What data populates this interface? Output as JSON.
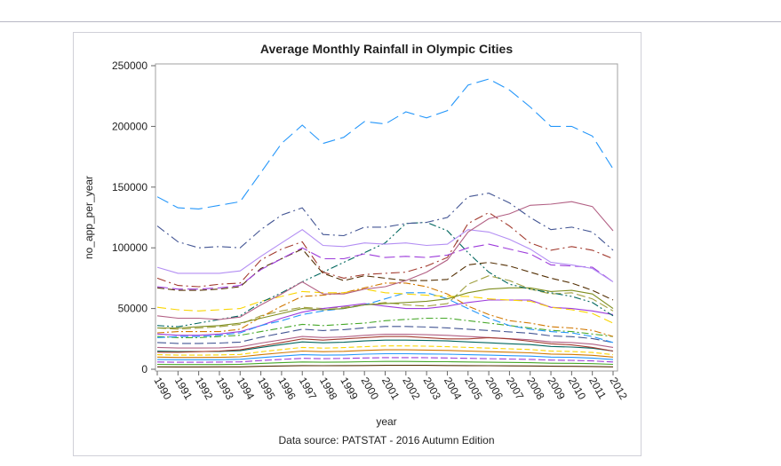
{
  "chart_data": {
    "type": "line",
    "title": "Average Monthly Rainfall in Olympic Cities",
    "xlabel": "year",
    "ylabel": "no_app_per_year",
    "footnote": "Data source: PATSTAT - 2016 Autumn Edition",
    "xlim": [
      1990,
      2012
    ],
    "ylim": [
      0,
      250000
    ],
    "yticks": [
      0,
      50000,
      100000,
      150000,
      200000,
      250000
    ],
    "x": [
      1990,
      1991,
      1992,
      1993,
      1994,
      1995,
      1996,
      1997,
      1998,
      1999,
      2000,
      2001,
      2002,
      2003,
      2004,
      2005,
      2006,
      2007,
      2008,
      2009,
      2010,
      2011,
      2012
    ],
    "grid": false,
    "legend": "none",
    "series": [
      {
        "color": "#2597FA",
        "dash": "14 6",
        "values": [
          142000,
          133000,
          132000,
          135000,
          138000,
          162000,
          186000,
          201000,
          186000,
          191000,
          204000,
          202000,
          212000,
          207000,
          213000,
          234000,
          239000,
          230000,
          216000,
          200000,
          200000,
          192000,
          165000
        ]
      },
      {
        "color": "#445694",
        "dash": "10 4 2 4",
        "values": [
          118000,
          105000,
          100000,
          101000,
          100000,
          115000,
          127000,
          133000,
          111000,
          110000,
          117000,
          117000,
          120000,
          121000,
          125000,
          142000,
          145000,
          137000,
          125000,
          115000,
          117000,
          113000,
          98000
        ]
      },
      {
        "color": "#B26084",
        "dash": "",
        "values": [
          44000,
          42000,
          42000,
          41000,
          43000,
          53000,
          62000,
          72000,
          62000,
          62000,
          66000,
          68000,
          73000,
          80000,
          90000,
          113000,
          124000,
          128000,
          135000,
          136000,
          138000,
          134000,
          114000
        ]
      },
      {
        "color": "#B38EF3",
        "dash": "",
        "values": [
          84000,
          79000,
          79000,
          79000,
          81000,
          93000,
          104000,
          115000,
          102000,
          101000,
          104000,
          103000,
          104000,
          102000,
          103000,
          115000,
          113000,
          107000,
          99000,
          88000,
          86000,
          83000,
          72000
        ]
      },
      {
        "color": "#A23A2E",
        "dash": "10 4 2 4",
        "values": [
          75000,
          69000,
          68000,
          70000,
          71000,
          90000,
          99000,
          105000,
          80000,
          75000,
          78000,
          79000,
          80000,
          85000,
          92000,
          120000,
          129000,
          118000,
          104000,
          98000,
          101000,
          98000,
          91000
        ]
      },
      {
        "color": "#9D3CDB",
        "dash": "12 5",
        "values": [
          68000,
          66000,
          66000,
          67000,
          69000,
          82000,
          91000,
          100000,
          91000,
          91000,
          95000,
          92000,
          93000,
          92000,
          94000,
          100000,
          103000,
          99000,
          95000,
          86000,
          85000,
          84000,
          72000
        ]
      },
      {
        "color": "#543005",
        "dash": "8 4",
        "values": [
          67000,
          65000,
          65000,
          66000,
          68000,
          83000,
          91000,
          99000,
          79000,
          73000,
          77000,
          75000,
          73000,
          73000,
          74000,
          86000,
          88000,
          85000,
          80000,
          75000,
          71000,
          65000,
          57000
        ]
      },
      {
        "color": "#01665E",
        "dash": "8 3 2 3 2 3",
        "values": [
          36000,
          35000,
          38000,
          41000,
          44000,
          55000,
          63000,
          72000,
          80000,
          88000,
          96000,
          104000,
          120000,
          121000,
          114000,
          96000,
          80000,
          70000,
          66000,
          63000,
          60000,
          55000,
          44000
        ]
      },
      {
        "color": "#7F8E1F",
        "dash": "",
        "values": [
          34000,
          34000,
          35000,
          36000,
          38000,
          42000,
          46000,
          50000,
          49000,
          50000,
          53000,
          54000,
          55000,
          56000,
          58000,
          63000,
          66000,
          67000,
          67000,
          64000,
          65000,
          62000,
          50000
        ]
      },
      {
        "color": "#F9D500",
        "dash": "10 5",
        "values": [
          51000,
          49000,
          48000,
          49000,
          50000,
          56000,
          60000,
          64000,
          63000,
          63000,
          66000,
          63000,
          62000,
          61000,
          60000,
          60000,
          58000,
          57000,
          56000,
          51000,
          49000,
          46000,
          38000
        ]
      },
      {
        "color": "#D17800",
        "dash": "8 3 2 3",
        "values": [
          30000,
          31000,
          31000,
          31000,
          33000,
          43000,
          52000,
          60000,
          61000,
          63000,
          67000,
          71000,
          71000,
          68000,
          62000,
          52000,
          45000,
          40000,
          38000,
          35000,
          34000,
          32000,
          27000
        ]
      },
      {
        "color": "#2597FA",
        "dash": "9 4",
        "values": [
          26000,
          27000,
          27000,
          28000,
          30000,
          36000,
          40000,
          45000,
          48000,
          50000,
          53000,
          58000,
          63000,
          63000,
          58000,
          50000,
          42000,
          36000,
          33000,
          31000,
          30000,
          27000,
          22000
        ]
      },
      {
        "color": "#9D3CDB",
        "dash": "",
        "values": [
          29000,
          28000,
          28000,
          29000,
          31000,
          36000,
          42000,
          47000,
          50000,
          52000,
          54000,
          52000,
          50000,
          50000,
          52000,
          55000,
          57000,
          57000,
          57000,
          51000,
          50000,
          48000,
          45000
        ]
      },
      {
        "color": "#A0A040",
        "dash": "10 4",
        "values": [
          34000,
          33000,
          34000,
          35000,
          37000,
          44000,
          48000,
          51000,
          50000,
          51000,
          53000,
          55000,
          53000,
          52000,
          54000,
          70000,
          77000,
          73000,
          66000,
          62000,
          63000,
          58000,
          48000
        ]
      },
      {
        "color": "#47A82A",
        "dash": "8 3 2 3",
        "values": [
          27000,
          26000,
          26000,
          27000,
          28000,
          31000,
          34000,
          37000,
          36000,
          37000,
          38000,
          40000,
          41000,
          42000,
          42000,
          40000,
          38000,
          36000,
          34000,
          32000,
          31000,
          29000,
          27000
        ]
      },
      {
        "color": "#A23A2E",
        "dash": "",
        "values": [
          14000,
          14000,
          14500,
          15000,
          16000,
          19000,
          22000,
          25000,
          24000,
          25000,
          26000,
          27000,
          27000,
          26000,
          25000,
          25000,
          26000,
          25000,
          23000,
          21000,
          20000,
          18000,
          15000
        ]
      },
      {
        "color": "#445694",
        "dash": "10 4",
        "values": [
          22000,
          21300,
          21300,
          21600,
          22400,
          26400,
          29700,
          33000,
          31900,
          32600,
          34100,
          35200,
          35200,
          34800,
          34100,
          33000,
          31900,
          30800,
          29700,
          27500,
          26800,
          25300,
          22000
        ]
      },
      {
        "color": "#B26084",
        "dash": "",
        "values": [
          18000,
          17500,
          17500,
          17600,
          18400,
          21600,
          24300,
          27000,
          26100,
          26600,
          27900,
          28800,
          28800,
          28400,
          27900,
          27000,
          26100,
          25200,
          24300,
          22500,
          22000,
          20700,
          18000
        ]
      },
      {
        "color": "#01665E",
        "dash": "",
        "values": [
          15000,
          14600,
          14600,
          14700,
          15300,
          18000,
          20300,
          22500,
          21800,
          22200,
          23300,
          24000,
          24000,
          23700,
          23300,
          22500,
          21800,
          21000,
          20300,
          18800,
          18300,
          17300,
          15000
        ]
      },
      {
        "color": "#F9D500",
        "dash": "6 3",
        "values": [
          12000,
          11600,
          11600,
          11800,
          12200,
          14400,
          16200,
          18000,
          17400,
          17800,
          18600,
          19200,
          19200,
          19000,
          18600,
          18000,
          17400,
          16800,
          16200,
          15000,
          14600,
          13800,
          12000
        ]
      },
      {
        "color": "#D17800",
        "dash": "",
        "values": [
          10000,
          9700,
          9700,
          9800,
          10200,
          12000,
          13500,
          15000,
          14500,
          14800,
          15500,
          16000,
          16000,
          15800,
          15500,
          15000,
          14500,
          14000,
          13500,
          12500,
          12200,
          11500,
          10000
        ]
      },
      {
        "color": "#2597FA",
        "dash": "",
        "values": [
          8000,
          7800,
          7800,
          7800,
          8200,
          9600,
          10800,
          12000,
          11600,
          11800,
          12400,
          12800,
          12800,
          12600,
          12400,
          12000,
          11600,
          11200,
          10800,
          10000,
          9800,
          9200,
          8000
        ]
      },
      {
        "color": "#9D3CDB",
        "dash": "8 3",
        "values": [
          6000,
          5800,
          5800,
          5900,
          6100,
          7200,
          8100,
          9000,
          8700,
          8900,
          9300,
          9600,
          9600,
          9500,
          9300,
          9000,
          8700,
          8400,
          8100,
          7500,
          7300,
          6900,
          6000
        ]
      },
      {
        "color": "#47A82A",
        "dash": "",
        "values": [
          4000,
          3900,
          3900,
          3900,
          4100,
          4800,
          5400,
          6000,
          5800,
          5900,
          6200,
          6400,
          6400,
          6300,
          6200,
          6000,
          5800,
          5600,
          5400,
          5000,
          4900,
          4600,
          4000
        ]
      },
      {
        "color": "#543005",
        "dash": "",
        "values": [
          2000,
          1900,
          1900,
          2000,
          2000,
          2400,
          2700,
          3000,
          2900,
          3000,
          3100,
          3200,
          3200,
          3200,
          3100,
          3000,
          2900,
          2800,
          2700,
          2500,
          2400,
          2300,
          2000
        ]
      }
    ]
  }
}
